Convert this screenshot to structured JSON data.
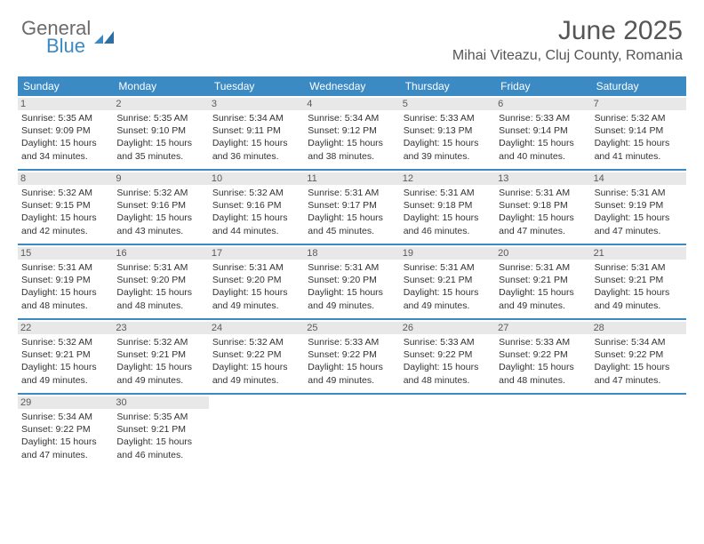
{
  "brand": {
    "general": "General",
    "blue": "Blue"
  },
  "title": "June 2025",
  "location": "Mihai Viteazu, Cluj County, Romania",
  "colors": {
    "accent": "#3b8ac4",
    "header_text": "#ffffff",
    "body_text": "#333333",
    "muted_text": "#555555",
    "daynum_bg": "#e8e8e8",
    "background": "#ffffff"
  },
  "day_headers": [
    "Sunday",
    "Monday",
    "Tuesday",
    "Wednesday",
    "Thursday",
    "Friday",
    "Saturday"
  ],
  "labels": {
    "sunrise": "Sunrise:",
    "sunset": "Sunset:",
    "daylight": "Daylight:"
  },
  "weeks": [
    [
      {
        "n": "1",
        "sr": "5:35 AM",
        "ss": "9:09 PM",
        "dl": "15 hours and 34 minutes."
      },
      {
        "n": "2",
        "sr": "5:35 AM",
        "ss": "9:10 PM",
        "dl": "15 hours and 35 minutes."
      },
      {
        "n": "3",
        "sr": "5:34 AM",
        "ss": "9:11 PM",
        "dl": "15 hours and 36 minutes."
      },
      {
        "n": "4",
        "sr": "5:34 AM",
        "ss": "9:12 PM",
        "dl": "15 hours and 38 minutes."
      },
      {
        "n": "5",
        "sr": "5:33 AM",
        "ss": "9:13 PM",
        "dl": "15 hours and 39 minutes."
      },
      {
        "n": "6",
        "sr": "5:33 AM",
        "ss": "9:14 PM",
        "dl": "15 hours and 40 minutes."
      },
      {
        "n": "7",
        "sr": "5:32 AM",
        "ss": "9:14 PM",
        "dl": "15 hours and 41 minutes."
      }
    ],
    [
      {
        "n": "8",
        "sr": "5:32 AM",
        "ss": "9:15 PM",
        "dl": "15 hours and 42 minutes."
      },
      {
        "n": "9",
        "sr": "5:32 AM",
        "ss": "9:16 PM",
        "dl": "15 hours and 43 minutes."
      },
      {
        "n": "10",
        "sr": "5:32 AM",
        "ss": "9:16 PM",
        "dl": "15 hours and 44 minutes."
      },
      {
        "n": "11",
        "sr": "5:31 AM",
        "ss": "9:17 PM",
        "dl": "15 hours and 45 minutes."
      },
      {
        "n": "12",
        "sr": "5:31 AM",
        "ss": "9:18 PM",
        "dl": "15 hours and 46 minutes."
      },
      {
        "n": "13",
        "sr": "5:31 AM",
        "ss": "9:18 PM",
        "dl": "15 hours and 47 minutes."
      },
      {
        "n": "14",
        "sr": "5:31 AM",
        "ss": "9:19 PM",
        "dl": "15 hours and 47 minutes."
      }
    ],
    [
      {
        "n": "15",
        "sr": "5:31 AM",
        "ss": "9:19 PM",
        "dl": "15 hours and 48 minutes."
      },
      {
        "n": "16",
        "sr": "5:31 AM",
        "ss": "9:20 PM",
        "dl": "15 hours and 48 minutes."
      },
      {
        "n": "17",
        "sr": "5:31 AM",
        "ss": "9:20 PM",
        "dl": "15 hours and 49 minutes."
      },
      {
        "n": "18",
        "sr": "5:31 AM",
        "ss": "9:20 PM",
        "dl": "15 hours and 49 minutes."
      },
      {
        "n": "19",
        "sr": "5:31 AM",
        "ss": "9:21 PM",
        "dl": "15 hours and 49 minutes."
      },
      {
        "n": "20",
        "sr": "5:31 AM",
        "ss": "9:21 PM",
        "dl": "15 hours and 49 minutes."
      },
      {
        "n": "21",
        "sr": "5:31 AM",
        "ss": "9:21 PM",
        "dl": "15 hours and 49 minutes."
      }
    ],
    [
      {
        "n": "22",
        "sr": "5:32 AM",
        "ss": "9:21 PM",
        "dl": "15 hours and 49 minutes."
      },
      {
        "n": "23",
        "sr": "5:32 AM",
        "ss": "9:21 PM",
        "dl": "15 hours and 49 minutes."
      },
      {
        "n": "24",
        "sr": "5:32 AM",
        "ss": "9:22 PM",
        "dl": "15 hours and 49 minutes."
      },
      {
        "n": "25",
        "sr": "5:33 AM",
        "ss": "9:22 PM",
        "dl": "15 hours and 49 minutes."
      },
      {
        "n": "26",
        "sr": "5:33 AM",
        "ss": "9:22 PM",
        "dl": "15 hours and 48 minutes."
      },
      {
        "n": "27",
        "sr": "5:33 AM",
        "ss": "9:22 PM",
        "dl": "15 hours and 48 minutes."
      },
      {
        "n": "28",
        "sr": "5:34 AM",
        "ss": "9:22 PM",
        "dl": "15 hours and 47 minutes."
      }
    ],
    [
      {
        "n": "29",
        "sr": "5:34 AM",
        "ss": "9:22 PM",
        "dl": "15 hours and 47 minutes."
      },
      {
        "n": "30",
        "sr": "5:35 AM",
        "ss": "9:21 PM",
        "dl": "15 hours and 46 minutes."
      },
      null,
      null,
      null,
      null,
      null
    ]
  ]
}
